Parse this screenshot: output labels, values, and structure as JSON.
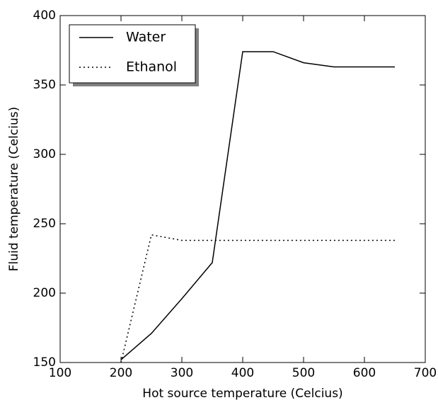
{
  "chart_data": {
    "type": "line",
    "xlabel": "Hot source temperature (Celcius)",
    "ylabel": "Fluid temperature (Celcius)",
    "x": [
      200,
      250,
      300,
      350,
      400,
      450,
      500,
      550,
      600,
      650
    ],
    "series": [
      {
        "name": "Water",
        "color": "#000000",
        "linestyle": "solid",
        "values": [
          152,
          171,
          196,
          222,
          374,
          374,
          366,
          363,
          363,
          363
        ]
      },
      {
        "name": "Ethanol",
        "color": "#000000",
        "linestyle": "dotted",
        "values": [
          150,
          242,
          238,
          238,
          238,
          238,
          238,
          238,
          238,
          238
        ]
      }
    ],
    "xlim": [
      100,
      700
    ],
    "xticks": [
      100,
      200,
      300,
      400,
      500,
      600,
      700
    ],
    "ylim": [
      150,
      400
    ],
    "yticks": [
      150,
      200,
      250,
      300,
      350,
      400
    ],
    "legend": "upper left",
    "grid": false
  }
}
